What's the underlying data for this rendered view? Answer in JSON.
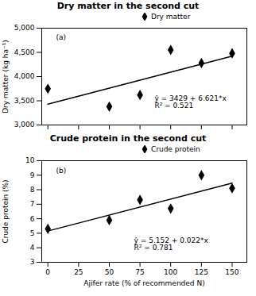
{
  "chart_data": [
    {
      "type": "scatter",
      "title": "Dry matter in the second cut",
      "ylabel": "Dry matter (kg ha⁻¹)",
      "series": [
        {
          "name": "Dry matter",
          "type": "scatter",
          "color": "black",
          "marker": "diamond",
          "x": [
            0,
            50,
            75,
            100,
            125,
            150
          ],
          "values": [
            3750,
            3380,
            3620,
            4550,
            4280,
            4480
          ]
        },
        {
          "type": "line",
          "color": "black",
          "x": [
            0,
            150
          ],
          "values": [
            3429,
            4422.15
          ]
        }
      ],
      "xlim": [
        -5,
        162
      ],
      "xticks": [
        0,
        25,
        50,
        75,
        100,
        125,
        150
      ],
      "ylim": [
        3000,
        5000
      ],
      "yticks": [
        {
          "value": 3000,
          "label": "3,000"
        },
        {
          "value": 3500,
          "label": "3,500"
        },
        {
          "value": 4000,
          "label": "4,000"
        },
        {
          "value": 4500,
          "label": "4,500"
        },
        {
          "value": 5000,
          "label": "5,000"
        }
      ],
      "tick_labels": "y",
      "legend": "top",
      "annotations": [
        "ŷ = 3429 + 6.621*x",
        "R² = 0.521",
        "(a)"
      ]
    },
    {
      "type": "scatter",
      "title": "Crude protein in the second cut",
      "xlabel": "Ajifer rate (% of recommended N)",
      "ylabel": "Crude protein (%)",
      "series": [
        {
          "name": "Crude protein",
          "type": "scatter",
          "color": "black",
          "marker": "diamond",
          "x": [
            0,
            50,
            75,
            100,
            125,
            150
          ],
          "values": [
            5.3,
            5.9,
            7.3,
            6.7,
            9.0,
            8.1
          ]
        },
        {
          "type": "line",
          "color": "black",
          "x": [
            0,
            150
          ],
          "values": [
            5.152,
            8.452
          ]
        }
      ],
      "xlim": [
        -5,
        162
      ],
      "xticks": [
        0,
        25,
        50,
        75,
        100,
        125,
        150
      ],
      "ylim": [
        3,
        10
      ],
      "yticks": [
        3,
        4,
        5,
        6,
        7,
        8,
        9,
        10
      ],
      "legend": "top",
      "annotations": [
        "ŷ = 5.152 + 0.022*x",
        "R² = 0.781",
        "(b)"
      ]
    }
  ]
}
